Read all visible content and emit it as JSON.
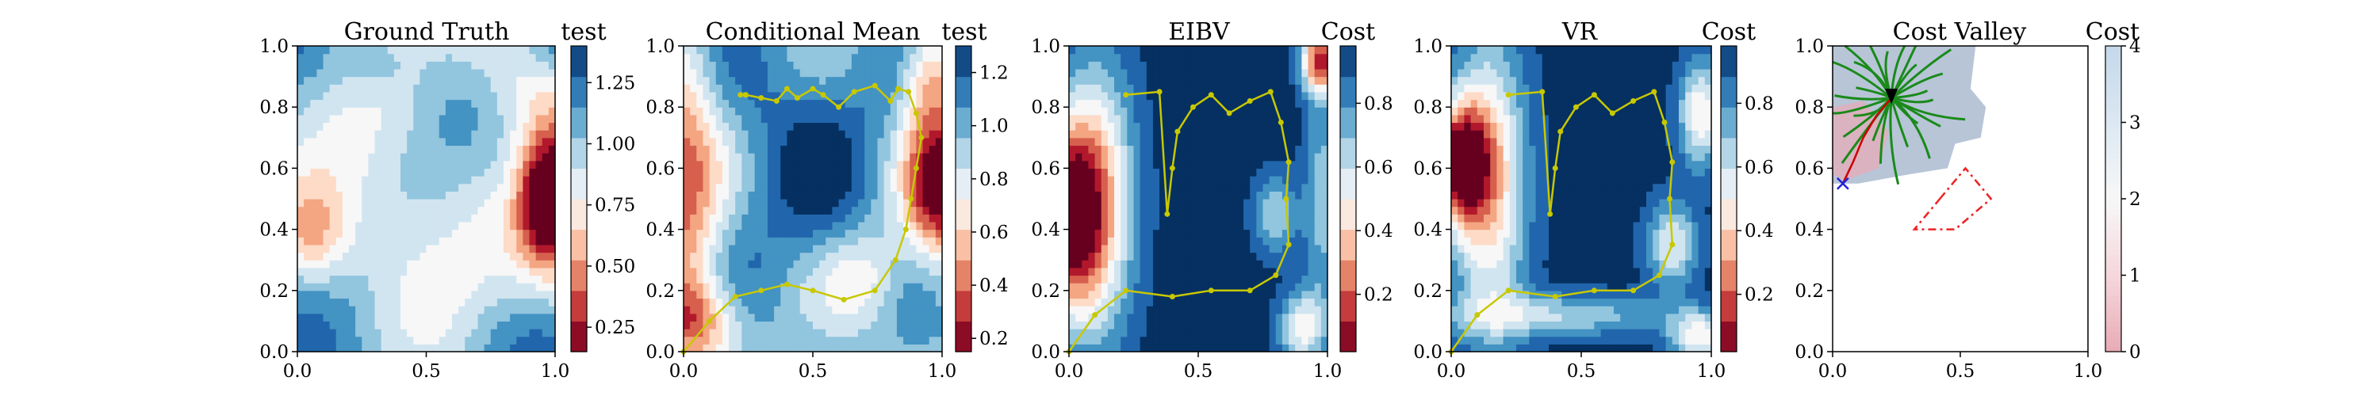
{
  "figure": {
    "panel_titles": [
      "Ground Truth",
      "Conditional Mean",
      "EIBV",
      "VR",
      "Cost Valley"
    ],
    "colorbar_titles": [
      "test",
      "test",
      "Cost",
      "Cost",
      "Cost"
    ]
  },
  "chart_data": [
    {
      "type": "heatmap",
      "title": "Ground Truth",
      "colorbar_label": "test",
      "xlim": [
        0,
        1
      ],
      "ylim": [
        0,
        1
      ],
      "x_ticks": [
        "0.0",
        "0.5",
        "1.0"
      ],
      "y_ticks": [
        "0.0",
        "0.2",
        "0.4",
        "0.6",
        "0.8",
        "1.0"
      ],
      "colorbar_ticks": [
        "0.25",
        "0.50",
        "0.75",
        "1.00",
        "1.25"
      ],
      "colorbar_range": [
        0.15,
        1.4
      ],
      "colormap": "RdBu"
    },
    {
      "type": "heatmap",
      "title": "Conditional Mean",
      "colorbar_label": "test",
      "xlim": [
        0,
        1
      ],
      "ylim": [
        0,
        1
      ],
      "x_ticks": [
        "0.0",
        "0.5",
        "1.0"
      ],
      "y_ticks": [
        "0.0",
        "0.2",
        "0.4",
        "0.6",
        "0.8",
        "1.0"
      ],
      "colorbar_ticks": [
        "0.2",
        "0.4",
        "0.6",
        "0.8",
        "1.0",
        "1.2"
      ],
      "colorbar_range": [
        0.15,
        1.3
      ],
      "colormap": "RdBu",
      "path_color": "#c8c800",
      "path": {
        "x": [
          0.0,
          0.1,
          0.2,
          0.3,
          0.4,
          0.5,
          0.62,
          0.74,
          0.82,
          0.86,
          0.88,
          0.9,
          0.92,
          0.9,
          0.87,
          0.83,
          0.8,
          0.74,
          0.66,
          0.6,
          0.54,
          0.5,
          0.44,
          0.4,
          0.36,
          0.3,
          0.24,
          0.22
        ],
        "y": [
          0.0,
          0.1,
          0.18,
          0.2,
          0.22,
          0.2,
          0.17,
          0.2,
          0.3,
          0.4,
          0.5,
          0.6,
          0.7,
          0.78,
          0.85,
          0.86,
          0.82,
          0.87,
          0.85,
          0.8,
          0.84,
          0.86,
          0.83,
          0.86,
          0.82,
          0.83,
          0.84,
          0.84
        ]
      }
    },
    {
      "type": "heatmap",
      "title": "EIBV",
      "colorbar_label": "Cost",
      "xlim": [
        0,
        1
      ],
      "ylim": [
        0,
        1
      ],
      "x_ticks": [
        "0.0",
        "0.5",
        "1.0"
      ],
      "y_ticks": [
        "0.0",
        "0.2",
        "0.4",
        "0.6",
        "0.8",
        "1.0"
      ],
      "colorbar_ticks": [
        "0.2",
        "0.4",
        "0.6",
        "0.8"
      ],
      "colorbar_range": [
        0.02,
        0.98
      ],
      "colormap": "RdBu",
      "path_color": "#c8c800",
      "path": {
        "x": [
          0.0,
          0.1,
          0.22,
          0.4,
          0.55,
          0.7,
          0.8,
          0.85,
          0.84,
          0.85,
          0.82,
          0.78,
          0.7,
          0.62,
          0.55,
          0.48,
          0.42,
          0.4,
          0.38,
          0.35,
          0.22
        ],
        "y": [
          0.0,
          0.12,
          0.2,
          0.18,
          0.2,
          0.2,
          0.25,
          0.35,
          0.5,
          0.62,
          0.75,
          0.85,
          0.82,
          0.78,
          0.84,
          0.8,
          0.72,
          0.6,
          0.45,
          0.85,
          0.84
        ]
      }
    },
    {
      "type": "heatmap",
      "title": "VR",
      "colorbar_label": "Cost",
      "xlim": [
        0,
        1
      ],
      "ylim": [
        0,
        1
      ],
      "x_ticks": [
        "0.0",
        "0.5",
        "1.0"
      ],
      "y_ticks": [
        "0.0",
        "0.2",
        "0.4",
        "0.6",
        "0.8",
        "1.0"
      ],
      "colorbar_ticks": [
        "0.2",
        "0.4",
        "0.6",
        "0.8"
      ],
      "colorbar_range": [
        0.02,
        0.98
      ],
      "colormap": "RdBu",
      "path_color": "#c8c800",
      "path": {
        "x": [
          0.0,
          0.1,
          0.22,
          0.4,
          0.55,
          0.7,
          0.8,
          0.85,
          0.84,
          0.85,
          0.82,
          0.78,
          0.7,
          0.62,
          0.55,
          0.48,
          0.42,
          0.4,
          0.38,
          0.35,
          0.22
        ],
        "y": [
          0.0,
          0.12,
          0.2,
          0.18,
          0.2,
          0.2,
          0.25,
          0.35,
          0.5,
          0.62,
          0.75,
          0.85,
          0.82,
          0.78,
          0.84,
          0.8,
          0.72,
          0.6,
          0.45,
          0.85,
          0.84
        ]
      }
    },
    {
      "type": "heatmap",
      "title": "Cost Valley",
      "colorbar_label": "Cost",
      "xlim": [
        0,
        1
      ],
      "ylim": [
        0,
        1
      ],
      "x_ticks": [
        "0.0",
        "0.5",
        "1.0"
      ],
      "y_ticks": [
        "0.0",
        "0.2",
        "0.4",
        "0.6",
        "0.8",
        "1.0"
      ],
      "colorbar_ticks": [
        "0",
        "1",
        "2",
        "3",
        "4"
      ],
      "colorbar_range": [
        0,
        4
      ],
      "colormap": "light RdBu",
      "current_location": [
        0.23,
        0.83
      ],
      "start_marker": [
        0.04,
        0.55
      ],
      "tree_color": "#1a8a1a",
      "route_color": "#cc0000",
      "obstacle": {
        "x": [
          0.42,
          0.52,
          0.62,
          0.48,
          0.38,
          0.32,
          0.42
        ],
        "y": [
          0.5,
          0.6,
          0.5,
          0.4,
          0.4,
          0.4,
          0.5
        ]
      }
    }
  ]
}
